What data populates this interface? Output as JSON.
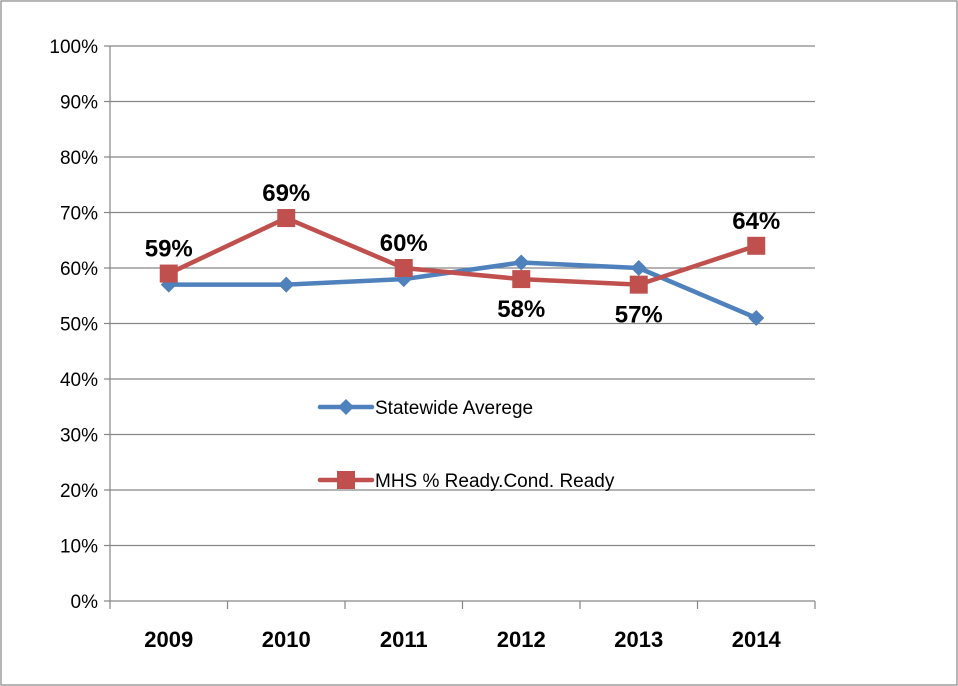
{
  "chart_data": {
    "type": "line",
    "categories": [
      "2009",
      "2010",
      "2011",
      "2012",
      "2013",
      "2014"
    ],
    "y_ticks": [
      "0%",
      "10%",
      "20%",
      "30%",
      "40%",
      "50%",
      "60%",
      "70%",
      "80%",
      "90%",
      "100%"
    ],
    "ylim": [
      0,
      100
    ],
    "grid": true,
    "legend_position": "center",
    "series": [
      {
        "name": "Statewide Averege",
        "color": "#4F81BD",
        "marker": "diamond",
        "values": [
          57,
          57,
          58,
          61,
          60,
          51
        ],
        "labels": [
          "",
          "",
          "",
          "",
          "",
          ""
        ]
      },
      {
        "name": "MHS % Ready.Cond. Ready",
        "color": "#C0504D",
        "marker": "square",
        "values": [
          59,
          69,
          60,
          58,
          57,
          64
        ],
        "labels": [
          "59%",
          "69%",
          "60%",
          "58%",
          "57%",
          "64%"
        ],
        "label_positions": [
          "above",
          "above",
          "above",
          "below",
          "below",
          "above"
        ]
      }
    ]
  }
}
